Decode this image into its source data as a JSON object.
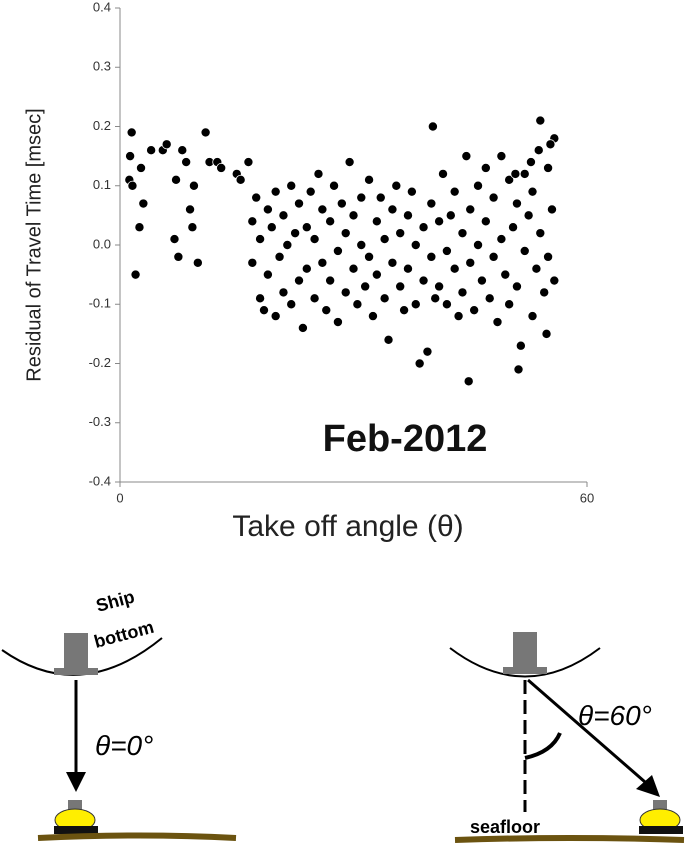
{
  "chart_data": {
    "type": "scatter",
    "y_label": "Residual of Travel Time [msec]",
    "x_label": "Take off angle (θ)",
    "annotation": "Feb-2012",
    "color": "#000000",
    "xlim": [
      0,
      60
    ],
    "xticks": [
      0,
      60
    ],
    "ylim": [
      -0.4,
      0.4
    ],
    "yticks": [
      -0.4,
      -0.3,
      -0.2,
      -0.1,
      {
        "value": 0,
        "label": "0.0"
      },
      0.1,
      0.2,
      0.3,
      0.4
    ],
    "x": [
      1.5,
      1.3,
      1.2,
      1.6,
      2,
      2.5,
      2.7,
      3,
      4,
      5.5,
      6,
      7,
      7.2,
      7.5,
      8,
      8.5,
      9,
      9.3,
      9.5,
      10,
      11,
      11.5,
      12.5,
      13,
      15,
      15.5,
      16.5,
      17,
      17,
      17.5,
      18,
      18,
      18.5,
      19,
      19,
      19.5,
      20,
      20,
      20.5,
      21,
      21,
      21.5,
      22,
      22,
      22.5,
      23,
      23,
      23.5,
      24,
      24,
      24.5,
      25,
      25,
      25.5,
      26,
      26,
      26.5,
      27,
      27,
      27.5,
      28,
      28,
      28.5,
      29,
      29,
      29.5,
      30,
      30,
      30.5,
      31,
      31,
      31.5,
      32,
      32,
      32.5,
      33,
      33,
      33.5,
      34,
      34,
      34.5,
      35,
      35,
      35.5,
      36,
      36,
      36.5,
      37,
      37,
      37.5,
      38,
      38,
      38.5,
      39,
      39,
      39.5,
      40,
      40,
      40.2,
      40.5,
      41,
      41,
      41.5,
      42,
      42,
      42.5,
      43,
      43,
      43.5,
      44,
      44,
      44.5,
      44.8,
      45,
      45,
      45.5,
      46,
      46,
      46.5,
      47,
      47,
      47.5,
      48,
      48,
      48.5,
      49,
      49,
      49.5,
      50,
      50,
      50.5,
      51,
      51,
      51.5,
      52,
      52,
      52.5,
      53,
      53,
      53.5,
      54,
      54,
      54.5,
      55,
      55,
      55.5,
      55.8,
      55.8,
      54.8,
      55.3,
      53.8,
      52.8,
      51.2,
      50.8
    ],
    "values": [
      0.19,
      0.15,
      0.11,
      0.1,
      -0.05,
      0.03,
      0.13,
      0.07,
      0.16,
      0.16,
      0.17,
      0.01,
      0.11,
      -0.02,
      0.16,
      0.14,
      0.06,
      0.03,
      0.1,
      -0.03,
      0.19,
      0.14,
      0.14,
      0.13,
      0.12,
      0.11,
      0.14,
      0.04,
      -0.03,
      0.08,
      -0.09,
      0.01,
      -0.11,
      0.06,
      -0.05,
      0.03,
      -0.12,
      0.09,
      -0.02,
      0.05,
      -0.08,
      0.0,
      0.1,
      -0.1,
      0.02,
      -0.06,
      0.07,
      -0.14,
      0.03,
      -0.04,
      0.09,
      -0.09,
      0.01,
      0.12,
      -0.03,
      0.06,
      -0.11,
      0.04,
      -0.06,
      0.1,
      -0.01,
      -0.13,
      0.07,
      0.02,
      -0.08,
      0.14,
      -0.04,
      0.05,
      -0.1,
      0.08,
      0.0,
      -0.07,
      0.11,
      -0.02,
      -0.12,
      0.04,
      -0.05,
      0.08,
      -0.09,
      0.01,
      -0.16,
      0.06,
      -0.03,
      0.1,
      -0.07,
      0.02,
      -0.11,
      0.05,
      -0.04,
      0.09,
      -0.1,
      0.0,
      -0.2,
      0.03,
      -0.06,
      -0.18,
      0.07,
      -0.02,
      0.2,
      -0.09,
      0.04,
      -0.07,
      0.12,
      -0.01,
      -0.1,
      0.05,
      -0.04,
      0.09,
      -0.12,
      0.02,
      -0.08,
      0.15,
      -0.23,
      0.06,
      -0.03,
      -0.11,
      0.1,
      0.0,
      -0.06,
      0.13,
      0.04,
      -0.09,
      -0.02,
      0.08,
      -0.13,
      0.15,
      0.01,
      -0.05,
      0.11,
      -0.1,
      0.03,
      -0.07,
      0.07,
      -0.17,
      0.12,
      -0.01,
      0.05,
      -0.12,
      0.09,
      -0.04,
      0.21,
      0.02,
      -0.08,
      0.13,
      -0.02,
      0.06,
      0.18,
      -0.06,
      -0.15,
      0.17,
      0.16,
      0.14,
      -0.21,
      0.12
    ]
  },
  "diagram": {
    "ship_label_1": "Ship",
    "ship_label_2": "bottom",
    "angle_0": "θ=0°",
    "angle_60": "θ=60°",
    "seafloor": "seafloor"
  }
}
